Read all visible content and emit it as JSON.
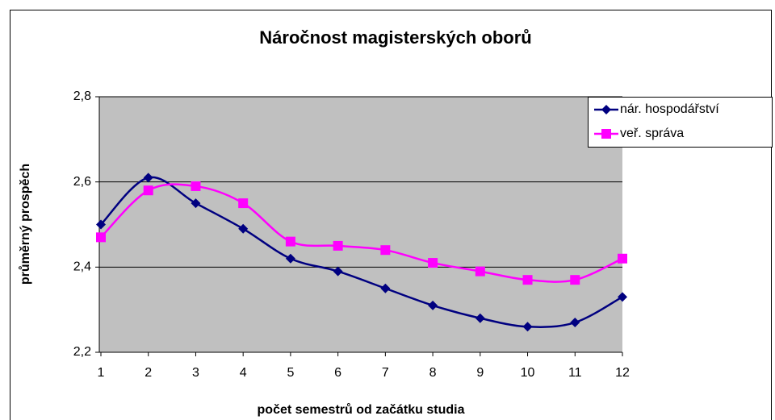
{
  "chart_data": {
    "type": "line",
    "title": "Náročnost magisterských oborů",
    "xlabel": "počet semestrů od začátku studia",
    "ylabel": "průměrný prospěch",
    "x": [
      1,
      2,
      3,
      4,
      5,
      6,
      7,
      8,
      9,
      10,
      11,
      12
    ],
    "xlim": [
      1,
      12
    ],
    "xticks": [
      1,
      2,
      3,
      4,
      5,
      6,
      7,
      8,
      9,
      10,
      11,
      12
    ],
    "ylim": [
      2.2,
      2.8
    ],
    "yticks": [
      {
        "value": 2.2,
        "label": "2,2"
      },
      {
        "value": 2.4,
        "label": "2,4"
      },
      {
        "value": 2.6,
        "label": "2,6"
      },
      {
        "value": 2.8,
        "label": "2,8"
      }
    ],
    "grid": true,
    "legend": "right",
    "series": [
      {
        "name": "nár. hospodářství",
        "color": "#000080",
        "marker": "diamond",
        "values": [
          2.5,
          2.61,
          2.55,
          2.49,
          2.42,
          2.39,
          2.35,
          2.31,
          2.28,
          2.26,
          2.27,
          2.33
        ]
      },
      {
        "name": "veř. správa",
        "color": "#ff00ff",
        "marker": "square",
        "values": [
          2.47,
          2.58,
          2.59,
          2.55,
          2.46,
          2.45,
          2.44,
          2.41,
          2.39,
          2.37,
          2.37,
          2.42
        ]
      }
    ]
  }
}
